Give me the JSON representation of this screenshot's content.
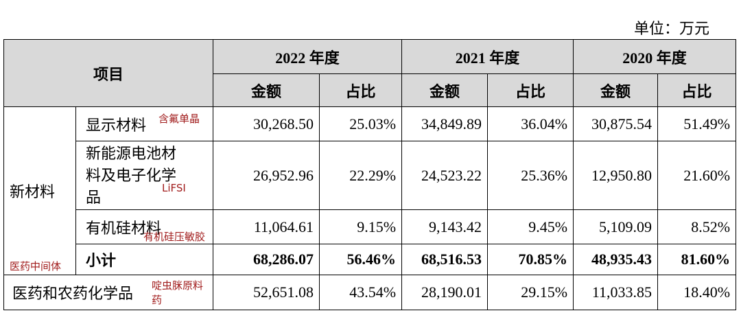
{
  "unit": "单位：万元",
  "table": {
    "item_header": "项目",
    "years": [
      {
        "year": "2022 年度",
        "amount": "金额",
        "share": "占比"
      },
      {
        "year": "2021 年度",
        "amount": "金额",
        "share": "占比"
      },
      {
        "year": "2020 年度",
        "amount": "金额",
        "share": "占比"
      }
    ],
    "sections": [
      {
        "name": "新材料",
        "note": "医药中间体",
        "rows": [
          {
            "name": "显示材料",
            "note": "含氟单晶",
            "cells": [
              "30,268.50",
              "25.03%",
              "34,849.89",
              "36.04%",
              "30,875.54",
              "51.49%"
            ]
          },
          {
            "name": "新能源电池材料及电子化学品",
            "note": "LiFSI",
            "cells": [
              "26,952.96",
              "22.29%",
              "24,523.22",
              "25.36%",
              "12,950.80",
              "21.60%"
            ]
          },
          {
            "name": "有机硅材料",
            "note": "有机硅压敏胶",
            "cells": [
              "11,064.61",
              "9.15%",
              "9,143.42",
              "9.45%",
              "5,109.09",
              "8.52%"
            ]
          },
          {
            "name": "小计",
            "bold": true,
            "cells": [
              "68,286.07",
              "56.46%",
              "68,516.53",
              "70.85%",
              "48,935.43",
              "81.60%"
            ]
          }
        ]
      },
      {
        "name": "医药和农药化学品",
        "note": "啶虫脒原料药",
        "cells": [
          "52,651.08",
          "43.54%",
          "28,190.01",
          "29.15%",
          "11,033.85",
          "18.40%"
        ]
      }
    ]
  }
}
